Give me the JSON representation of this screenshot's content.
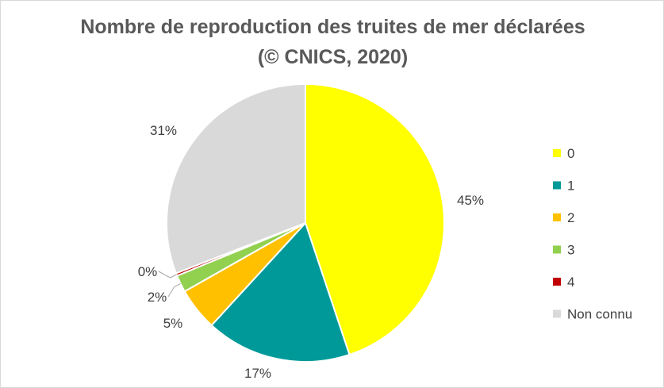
{
  "chart_data": {
    "type": "pie",
    "title": "Nombre de reproduction des truites de mer déclarées",
    "subtitle": "(© CNICS, 2020)",
    "categories": [
      "0",
      "1",
      "2",
      "3",
      "4",
      "Non connu"
    ],
    "values": [
      45,
      17,
      5,
      2,
      0.3,
      31
    ],
    "data_labels": [
      "45%",
      "17%",
      "5%",
      "2%",
      "0%",
      "31%"
    ],
    "colors": [
      "#FFFF00",
      "#009999",
      "#FFC000",
      "#92D050",
      "#C00000",
      "#D9D9D9"
    ],
    "legend_position": "right"
  }
}
